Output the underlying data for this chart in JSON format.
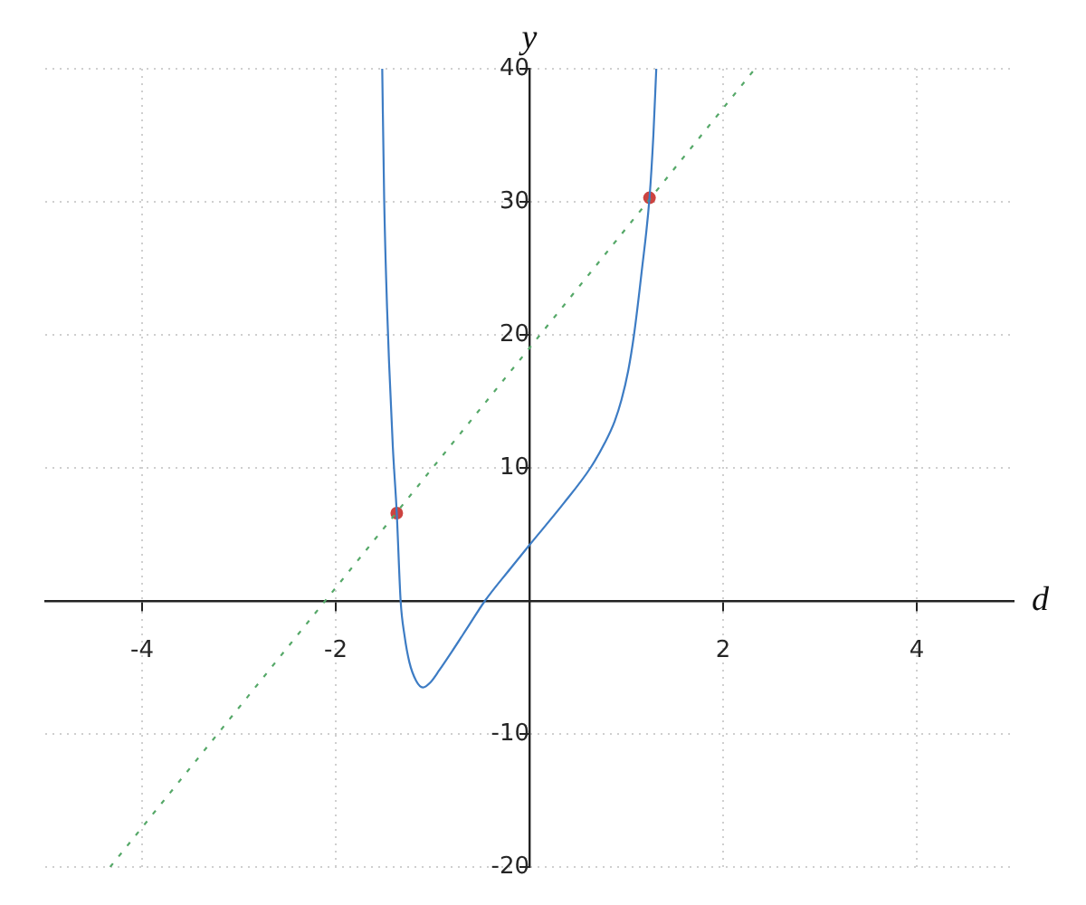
{
  "chart_data": {
    "type": "line",
    "xlabel": "d",
    "ylabel": "y",
    "xlim": [
      -5,
      5
    ],
    "ylim": [
      -20,
      40
    ],
    "xticks": [
      -4,
      -2,
      2,
      4
    ],
    "yticks": [
      -20,
      -10,
      10,
      20,
      30,
      40
    ],
    "grid": true,
    "legend": false,
    "series": [
      {
        "type": "line",
        "color": "#3d7cc4",
        "marker": "none",
        "line_style": "solid",
        "x": [
          -1.52,
          -1.5,
          -1.47,
          -1.45,
          -1.41,
          -1.37,
          -1.33,
          -1.29,
          -1.24,
          -1.17,
          -1.1,
          -1.02,
          -0.93,
          -0.8,
          -0.63,
          -0.46,
          -0.2,
          0,
          0.35,
          0.63,
          0.78,
          0.88,
          0.95,
          1.02,
          1.08,
          1.16,
          1.24,
          1.28,
          1.31
        ],
        "values": [
          40,
          30.2,
          22,
          18,
          11.5,
          6.6,
          0,
          -2.6,
          -4.6,
          -6,
          -6.5,
          -6.1,
          -5.2,
          -3.8,
          -1.9,
          0,
          2.4,
          4.2,
          7.3,
          10,
          11.9,
          13.5,
          15.1,
          17.3,
          20,
          24.8,
          30.3,
          35,
          40
        ]
      },
      {
        "type": "line",
        "color": "#55a868",
        "marker": "none",
        "line_style": "dashed",
        "x": [
          -4.33,
          2.33
        ],
        "values": [
          -20,
          40
        ]
      },
      {
        "type": "scatter",
        "color": "#cc4340",
        "marker": "circle",
        "x": [
          -1.37,
          1.24
        ],
        "values": [
          6.6,
          30.3
        ]
      }
    ]
  }
}
